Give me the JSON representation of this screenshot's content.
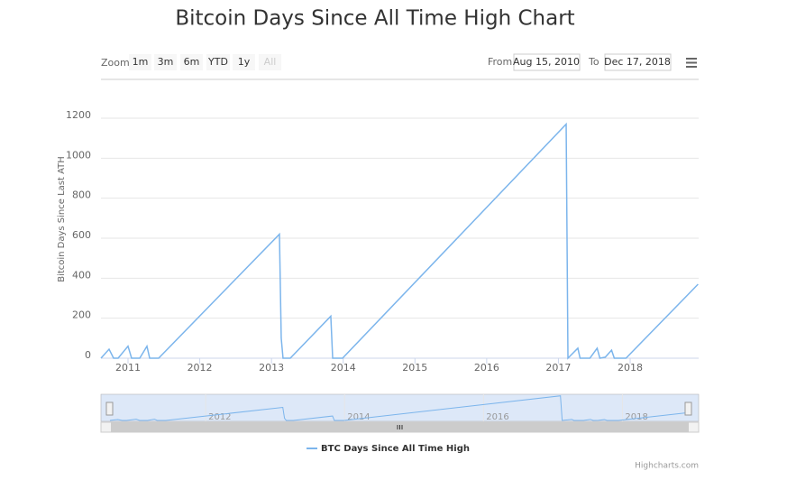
{
  "chart_data": {
    "type": "line",
    "title": "Bitcoin Days Since All Time High Chart",
    "range_selector": {
      "label": "Zoom",
      "buttons": [
        "1m",
        "3m",
        "6m",
        "YTD",
        "1y",
        "All"
      ],
      "from_label": "From",
      "from": "Aug 15, 2010",
      "to_label": "To",
      "to": "Dec 17, 2018"
    },
    "y_label": "Bitcoin Days Since Last ATH",
    "x": [
      2010.623,
      2010.736,
      2010.799,
      2010.862,
      2011.0,
      2011.05,
      2011.163,
      2011.264,
      2011.302,
      2011.427,
      2013.111,
      2013.136,
      2013.161,
      2013.262,
      2013.827,
      2013.853,
      2013.991,
      2017.108,
      2017.133,
      2017.271,
      2017.302,
      2017.439,
      2017.54,
      2017.578,
      2017.653,
      2017.741,
      2017.779,
      2017.942,
      2018.947
    ],
    "series": [
      {
        "name": "BTC Days Since All Time High",
        "color": "#7cb5ec",
        "values": [
          0,
          45,
          0,
          0,
          60,
          0,
          0,
          60,
          0,
          0,
          620,
          100,
          0,
          0,
          210,
          0,
          0,
          1170,
          0,
          50,
          0,
          0,
          50,
          0,
          5,
          40,
          0,
          0,
          370
        ]
      }
    ],
    "xlim": [
      2010.623,
      2018.955
    ],
    "xticks": [
      2011,
      2012,
      2013,
      2014,
      2015,
      2016,
      2017,
      2018
    ],
    "ylim": [
      0,
      1200
    ],
    "yticks": [
      0,
      200,
      400,
      600,
      800,
      1000,
      1200
    ],
    "grid": true,
    "navigator_xticks": [
      2012,
      2014,
      2016,
      2018
    ],
    "credits": "Highcharts.com"
  }
}
